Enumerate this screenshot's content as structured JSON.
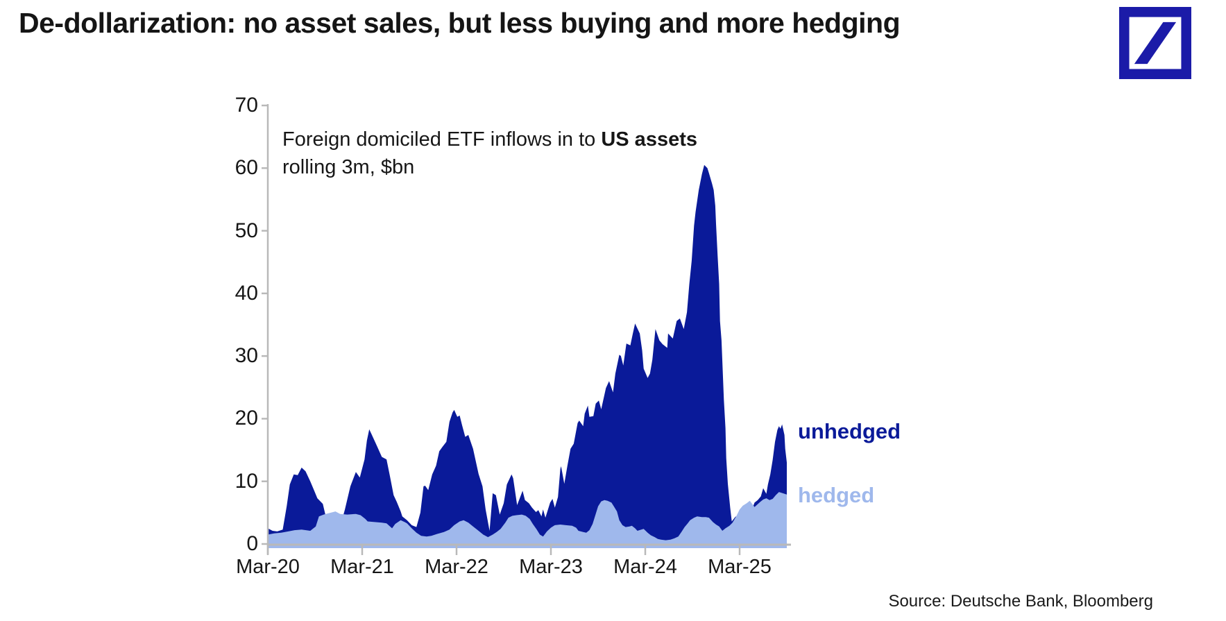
{
  "page": {
    "title": "De-dollarization: no asset sales, but less buying and more hedging",
    "source": "Source: Deutsche Bank, Bloomberg"
  },
  "logo": {
    "name": "deutsche-bank-logo",
    "color": "#1B1BA8"
  },
  "chart_data": {
    "type": "area",
    "title": "Foreign domiciled ETF inflows in to US assets",
    "subtitle": "rolling 3m, $bn",
    "annotation": {
      "line1_normal": "Foreign domiciled ETF inflows in to ",
      "line1_bold": "US assets",
      "line2": "rolling 3m, $bn"
    },
    "x_axis": {
      "unit": "months since Mar-2020",
      "range_months": [
        0,
        66
      ],
      "tick_positions_months": [
        0,
        12,
        24,
        36,
        48,
        60
      ],
      "tick_labels": [
        "Mar-20",
        "Mar-21",
        "Mar-22",
        "Mar-23",
        "Mar-24",
        "Mar-25"
      ],
      "grid": false
    },
    "y_axis": {
      "range": [
        0,
        70
      ],
      "ticks": [
        0,
        10,
        20,
        30,
        40,
        50,
        60,
        70
      ],
      "grid": false
    },
    "axis_color": "#b9b9b9",
    "series": [
      {
        "name": "unhedged",
        "color": "#0A1A99",
        "points": [
          [
            0,
            2.5
          ],
          [
            0.6,
            2.1
          ],
          [
            1.2,
            2.0
          ],
          [
            1.9,
            2.3
          ],
          [
            2.4,
            6.0
          ],
          [
            2.8,
            9.5
          ],
          [
            3.3,
            11.1
          ],
          [
            3.8,
            11.0
          ],
          [
            4.3,
            12.2
          ],
          [
            4.8,
            11.6
          ],
          [
            5.4,
            10.0
          ],
          [
            5.9,
            8.5
          ],
          [
            6.3,
            7.3
          ],
          [
            7.0,
            6.4
          ],
          [
            7.3,
            4.8
          ],
          [
            7.5,
            3.0
          ],
          [
            7.9,
            4.2
          ],
          [
            8.3,
            4.5
          ],
          [
            8.7,
            3.5
          ],
          [
            9.2,
            2.8
          ],
          [
            9.8,
            5.5
          ],
          [
            10.5,
            9.2
          ],
          [
            11.2,
            11.5
          ],
          [
            11.7,
            10.6
          ],
          [
            12.3,
            13.5
          ],
          [
            12.6,
            16.5
          ],
          [
            12.9,
            18.3
          ],
          [
            13.2,
            17.5
          ],
          [
            13.9,
            15.6
          ],
          [
            14.5,
            13.9
          ],
          [
            15.1,
            13.5
          ],
          [
            15.5,
            11.0
          ],
          [
            16.0,
            7.8
          ],
          [
            16.4,
            6.7
          ],
          [
            16.9,
            5.2
          ],
          [
            17.1,
            4.4
          ],
          [
            17.7,
            3.8
          ],
          [
            18.3,
            3.0
          ],
          [
            18.9,
            2.7
          ],
          [
            19.4,
            5.0
          ],
          [
            19.8,
            9.2
          ],
          [
            20.0,
            9.3
          ],
          [
            20.4,
            8.6
          ],
          [
            20.9,
            11.1
          ],
          [
            21.4,
            12.5
          ],
          [
            21.8,
            14.8
          ],
          [
            22.2,
            15.5
          ],
          [
            22.7,
            16.3
          ],
          [
            23.1,
            19.5
          ],
          [
            23.5,
            21.0
          ],
          [
            23.7,
            21.4
          ],
          [
            24.1,
            20.3
          ],
          [
            24.4,
            20.5
          ],
          [
            24.7,
            19.0
          ],
          [
            25.1,
            17.1
          ],
          [
            25.5,
            17.4
          ],
          [
            26.1,
            15.2
          ],
          [
            26.8,
            11.2
          ],
          [
            27.3,
            9.2
          ],
          [
            27.7,
            5.5
          ],
          [
            28.2,
            2.1
          ],
          [
            28.6,
            8.1
          ],
          [
            29.0,
            7.8
          ],
          [
            29.5,
            4.7
          ],
          [
            30.0,
            6.5
          ],
          [
            30.4,
            9.5
          ],
          [
            31.0,
            11.1
          ],
          [
            31.2,
            10.5
          ],
          [
            31.7,
            6.2
          ],
          [
            32.1,
            7.5
          ],
          [
            32.4,
            8.5
          ],
          [
            32.7,
            7.0
          ],
          [
            33.2,
            6.5
          ],
          [
            33.6,
            5.8
          ],
          [
            34.1,
            5.1
          ],
          [
            34.4,
            5.4
          ],
          [
            34.8,
            4.4
          ],
          [
            35.0,
            5.5
          ],
          [
            35.3,
            4.2
          ],
          [
            35.9,
            6.6
          ],
          [
            36.2,
            7.2
          ],
          [
            36.5,
            5.8
          ],
          [
            36.9,
            7.5
          ],
          [
            37.2,
            12.0
          ],
          [
            37.3,
            12.4
          ],
          [
            37.7,
            9.6
          ],
          [
            38.1,
            12.5
          ],
          [
            38.5,
            15.2
          ],
          [
            38.9,
            16.0
          ],
          [
            39.4,
            19.3
          ],
          [
            39.6,
            19.7
          ],
          [
            40.1,
            18.8
          ],
          [
            40.3,
            20.8
          ],
          [
            40.7,
            22.1
          ],
          [
            40.9,
            20.3
          ],
          [
            41.4,
            20.4
          ],
          [
            41.7,
            22.4
          ],
          [
            42.1,
            22.9
          ],
          [
            42.4,
            21.5
          ],
          [
            43.0,
            24.9
          ],
          [
            43.4,
            26.0
          ],
          [
            43.9,
            24.2
          ],
          [
            44.2,
            27.2
          ],
          [
            44.7,
            30.2
          ],
          [
            44.9,
            30.0
          ],
          [
            45.2,
            28.5
          ],
          [
            45.6,
            32.0
          ],
          [
            46.1,
            31.7
          ],
          [
            46.4,
            33.5
          ],
          [
            46.7,
            35.2
          ],
          [
            47.3,
            33.6
          ],
          [
            47.6,
            30.9
          ],
          [
            47.8,
            28.0
          ],
          [
            48.3,
            26.5
          ],
          [
            48.6,
            27.2
          ],
          [
            48.9,
            29.4
          ],
          [
            49.3,
            34.3
          ],
          [
            49.8,
            32.5
          ],
          [
            50.2,
            31.9
          ],
          [
            50.8,
            31.3
          ],
          [
            50.9,
            33.6
          ],
          [
            51.5,
            32.8
          ],
          [
            52.0,
            35.6
          ],
          [
            52.4,
            36.0
          ],
          [
            52.9,
            34.3
          ],
          [
            53.3,
            37.0
          ],
          [
            53.6,
            41.5
          ],
          [
            53.9,
            45.2
          ],
          [
            54.2,
            50.8
          ],
          [
            54.4,
            53.0
          ],
          [
            54.8,
            56.5
          ],
          [
            55.2,
            59.0
          ],
          [
            55.5,
            60.5
          ],
          [
            55.9,
            60.0
          ],
          [
            56.1,
            59.2
          ],
          [
            56.5,
            57.5
          ],
          [
            56.7,
            56.5
          ],
          [
            56.9,
            54.0
          ],
          [
            57.0,
            51.1
          ],
          [
            57.2,
            46.0
          ],
          [
            57.4,
            41.5
          ],
          [
            57.5,
            35.6
          ],
          [
            57.7,
            32.5
          ],
          [
            58.0,
            23.0
          ],
          [
            58.2,
            18.5
          ],
          [
            58.3,
            13.7
          ],
          [
            58.5,
            9.6
          ],
          [
            58.8,
            5.8
          ],
          [
            59.0,
            3.6
          ],
          [
            59.5,
            4.4
          ],
          [
            59.8,
            3.8
          ],
          [
            60.1,
            3.9
          ],
          [
            60.6,
            4.7
          ],
          [
            61.0,
            3.8
          ],
          [
            61.4,
            5.0
          ],
          [
            61.9,
            6.6
          ],
          [
            62.3,
            7.0
          ],
          [
            62.7,
            7.6
          ],
          [
            63.0,
            8.9
          ],
          [
            63.4,
            8.0
          ],
          [
            63.6,
            9.5
          ],
          [
            63.9,
            11.1
          ],
          [
            64.2,
            13.4
          ],
          [
            64.5,
            16.3
          ],
          [
            64.8,
            18.2
          ],
          [
            65.0,
            18.8
          ],
          [
            65.2,
            18.4
          ],
          [
            65.4,
            19.1
          ],
          [
            65.7,
            17.4
          ],
          [
            65.8,
            15.2
          ],
          [
            66.0,
            13.0
          ]
        ]
      },
      {
        "name": "hedged",
        "color": "#9FB8EC",
        "points": [
          [
            0,
            1.5
          ],
          [
            0.8,
            1.7
          ],
          [
            1.7,
            1.8
          ],
          [
            2.6,
            2.0
          ],
          [
            3.4,
            2.2
          ],
          [
            4.3,
            2.3
          ],
          [
            5.4,
            2.1
          ],
          [
            6.1,
            2.8
          ],
          [
            6.5,
            4.4
          ],
          [
            7.1,
            4.7
          ],
          [
            7.7,
            4.9
          ],
          [
            8.6,
            5.2
          ],
          [
            9.2,
            4.8
          ],
          [
            10.1,
            4.7
          ],
          [
            11.2,
            4.8
          ],
          [
            11.8,
            4.6
          ],
          [
            12.4,
            4.0
          ],
          [
            12.7,
            3.6
          ],
          [
            13.6,
            3.5
          ],
          [
            14.5,
            3.4
          ],
          [
            15.1,
            3.3
          ],
          [
            15.8,
            2.5
          ],
          [
            16.2,
            3.2
          ],
          [
            16.9,
            3.8
          ],
          [
            17.4,
            3.5
          ],
          [
            17.7,
            3.3
          ],
          [
            18.3,
            2.5
          ],
          [
            18.9,
            1.8
          ],
          [
            19.5,
            1.3
          ],
          [
            20.2,
            1.2
          ],
          [
            20.8,
            1.3
          ],
          [
            21.5,
            1.6
          ],
          [
            22.4,
            1.9
          ],
          [
            23.1,
            2.3
          ],
          [
            23.7,
            3.0
          ],
          [
            24.4,
            3.6
          ],
          [
            24.9,
            3.8
          ],
          [
            25.5,
            3.4
          ],
          [
            26.1,
            2.8
          ],
          [
            26.8,
            2.1
          ],
          [
            27.4,
            1.5
          ],
          [
            28.0,
            1.1
          ],
          [
            28.6,
            1.5
          ],
          [
            29.1,
            1.9
          ],
          [
            29.6,
            2.4
          ],
          [
            30.2,
            3.4
          ],
          [
            30.6,
            4.2
          ],
          [
            31.1,
            4.5
          ],
          [
            31.6,
            4.6
          ],
          [
            32.3,
            4.7
          ],
          [
            32.8,
            4.5
          ],
          [
            33.3,
            4.0
          ],
          [
            33.7,
            3.2
          ],
          [
            34.2,
            2.3
          ],
          [
            34.6,
            1.5
          ],
          [
            35.0,
            1.2
          ],
          [
            35.5,
            2.0
          ],
          [
            36.0,
            2.6
          ],
          [
            36.5,
            3.0
          ],
          [
            37.2,
            3.1
          ],
          [
            37.9,
            3.0
          ],
          [
            38.7,
            2.9
          ],
          [
            39.2,
            2.6
          ],
          [
            39.5,
            2.1
          ],
          [
            40.1,
            1.9
          ],
          [
            40.5,
            1.8
          ],
          [
            40.9,
            2.2
          ],
          [
            41.3,
            3.2
          ],
          [
            41.7,
            4.8
          ],
          [
            42.0,
            6.0
          ],
          [
            42.4,
            6.8
          ],
          [
            42.8,
            7.0
          ],
          [
            43.2,
            6.9
          ],
          [
            43.7,
            6.6
          ],
          [
            44.0,
            6.0
          ],
          [
            44.4,
            5.2
          ],
          [
            44.7,
            3.8
          ],
          [
            45.1,
            3.0
          ],
          [
            45.5,
            2.7
          ],
          [
            46.0,
            2.8
          ],
          [
            46.3,
            2.9
          ],
          [
            46.7,
            2.5
          ],
          [
            47.0,
            2.1
          ],
          [
            47.5,
            2.3
          ],
          [
            47.8,
            2.4
          ],
          [
            48.3,
            1.8
          ],
          [
            48.7,
            1.4
          ],
          [
            49.2,
            1.1
          ],
          [
            49.6,
            0.8
          ],
          [
            50.0,
            0.7
          ],
          [
            50.6,
            0.6
          ],
          [
            51.2,
            0.7
          ],
          [
            51.7,
            0.9
          ],
          [
            52.2,
            1.2
          ],
          [
            52.6,
            1.9
          ],
          [
            53.0,
            2.7
          ],
          [
            53.4,
            3.3
          ],
          [
            53.7,
            3.8
          ],
          [
            54.2,
            4.2
          ],
          [
            54.6,
            4.4
          ],
          [
            55.2,
            4.3
          ],
          [
            55.7,
            4.3
          ],
          [
            56.1,
            4.2
          ],
          [
            56.6,
            3.5
          ],
          [
            57.0,
            3.1
          ],
          [
            57.4,
            2.8
          ],
          [
            57.8,
            2.1
          ],
          [
            58.2,
            2.5
          ],
          [
            58.7,
            2.9
          ],
          [
            59.1,
            3.4
          ],
          [
            59.6,
            4.5
          ],
          [
            60.0,
            5.5
          ],
          [
            60.4,
            6.1
          ],
          [
            60.9,
            6.5
          ],
          [
            61.3,
            6.9
          ],
          [
            61.9,
            5.9
          ],
          [
            62.6,
            6.7
          ],
          [
            63.0,
            7.1
          ],
          [
            63.4,
            7.3
          ],
          [
            63.8,
            7.0
          ],
          [
            64.2,
            7.2
          ],
          [
            64.6,
            7.8
          ],
          [
            65.0,
            8.3
          ],
          [
            65.5,
            8.1
          ],
          [
            66.0,
            7.9
          ]
        ]
      }
    ],
    "legend": {
      "position": "right-of-plot",
      "entries": [
        "unhedged",
        "hedged"
      ]
    }
  }
}
